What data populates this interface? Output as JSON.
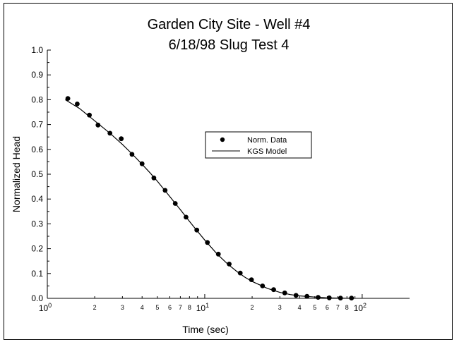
{
  "chart_data": {
    "type": "scatter",
    "title": "Garden City Site - Well #4",
    "subtitle": "6/18/98 Slug Test 4",
    "xlabel": "Time (sec)",
    "ylabel": "Normalized Head",
    "x_scale": "log",
    "xlim": [
      1,
      200
    ],
    "ylim": [
      0,
      1.0
    ],
    "grid": false,
    "legend_position": "center-right",
    "y_ticks": [
      "0.0",
      "0.1",
      "0.2",
      "0.3",
      "0.4",
      "0.5",
      "0.6",
      "0.7",
      "0.8",
      "0.9",
      "1.0"
    ],
    "x_major_ticks": [
      {
        "value": 1,
        "base": "10",
        "exp": "0"
      },
      {
        "value": 10,
        "base": "10",
        "exp": "1"
      },
      {
        "value": 100,
        "base": "10",
        "exp": "2"
      }
    ],
    "x_minor_tick_labels": [
      {
        "value": 2,
        "label": "2"
      },
      {
        "value": 3,
        "label": "3"
      },
      {
        "value": 4,
        "label": "4"
      },
      {
        "value": 5,
        "label": "5"
      },
      {
        "value": 6,
        "label": "6"
      },
      {
        "value": 7,
        "label": "7"
      },
      {
        "value": 8,
        "label": "8"
      },
      {
        "value": 20,
        "label": "2"
      },
      {
        "value": 30,
        "label": "3"
      },
      {
        "value": 40,
        "label": "4"
      },
      {
        "value": 50,
        "label": "5"
      },
      {
        "value": 60,
        "label": "6"
      },
      {
        "value": 70,
        "label": "7"
      },
      {
        "value": 80,
        "label": "8"
      }
    ],
    "series": [
      {
        "name": "Norm. Data",
        "kind": "scatter",
        "color": "#000000",
        "points": [
          [
            1.35,
            0.805
          ],
          [
            1.55,
            0.783
          ],
          [
            1.85,
            0.738
          ],
          [
            2.1,
            0.698
          ],
          [
            2.5,
            0.665
          ],
          [
            2.95,
            0.643
          ],
          [
            3.45,
            0.58
          ],
          [
            4.0,
            0.542
          ],
          [
            4.75,
            0.485
          ],
          [
            5.6,
            0.435
          ],
          [
            6.5,
            0.382
          ],
          [
            7.6,
            0.327
          ],
          [
            8.9,
            0.275
          ],
          [
            10.4,
            0.225
          ],
          [
            12.2,
            0.178
          ],
          [
            14.3,
            0.138
          ],
          [
            16.8,
            0.102
          ],
          [
            19.8,
            0.075
          ],
          [
            23.3,
            0.05
          ],
          [
            27.4,
            0.035
          ],
          [
            32.2,
            0.022
          ],
          [
            38.0,
            0.012
          ],
          [
            44.6,
            0.008
          ],
          [
            52.5,
            0.004
          ],
          [
            61.8,
            0.002
          ],
          [
            72.8,
            0.001
          ],
          [
            85.6,
            0.001
          ]
        ]
      },
      {
        "name": "KGS Model",
        "kind": "line",
        "color": "#000000",
        "points": [
          [
            1.3,
            0.8
          ],
          [
            1.6,
            0.765
          ],
          [
            2.0,
            0.715
          ],
          [
            2.5,
            0.665
          ],
          [
            3.0,
            0.62
          ],
          [
            3.5,
            0.578
          ],
          [
            4.0,
            0.54
          ],
          [
            4.5,
            0.505
          ],
          [
            5.0,
            0.472
          ],
          [
            6.0,
            0.41
          ],
          [
            7.0,
            0.357
          ],
          [
            8.0,
            0.31
          ],
          [
            9.0,
            0.27
          ],
          [
            10.0,
            0.235
          ],
          [
            12.0,
            0.178
          ],
          [
            14.0,
            0.138
          ],
          [
            16.0,
            0.108
          ],
          [
            18.0,
            0.085
          ],
          [
            20.0,
            0.068
          ],
          [
            25.0,
            0.04
          ],
          [
            30.0,
            0.024
          ],
          [
            35.0,
            0.015
          ],
          [
            40.0,
            0.01
          ],
          [
            50.0,
            0.005
          ],
          [
            60.0,
            0.002
          ],
          [
            70.0,
            0.001
          ],
          [
            85.0,
            0.0
          ]
        ]
      }
    ],
    "legend_entries": [
      "Norm. Data",
      "KGS Model"
    ]
  }
}
